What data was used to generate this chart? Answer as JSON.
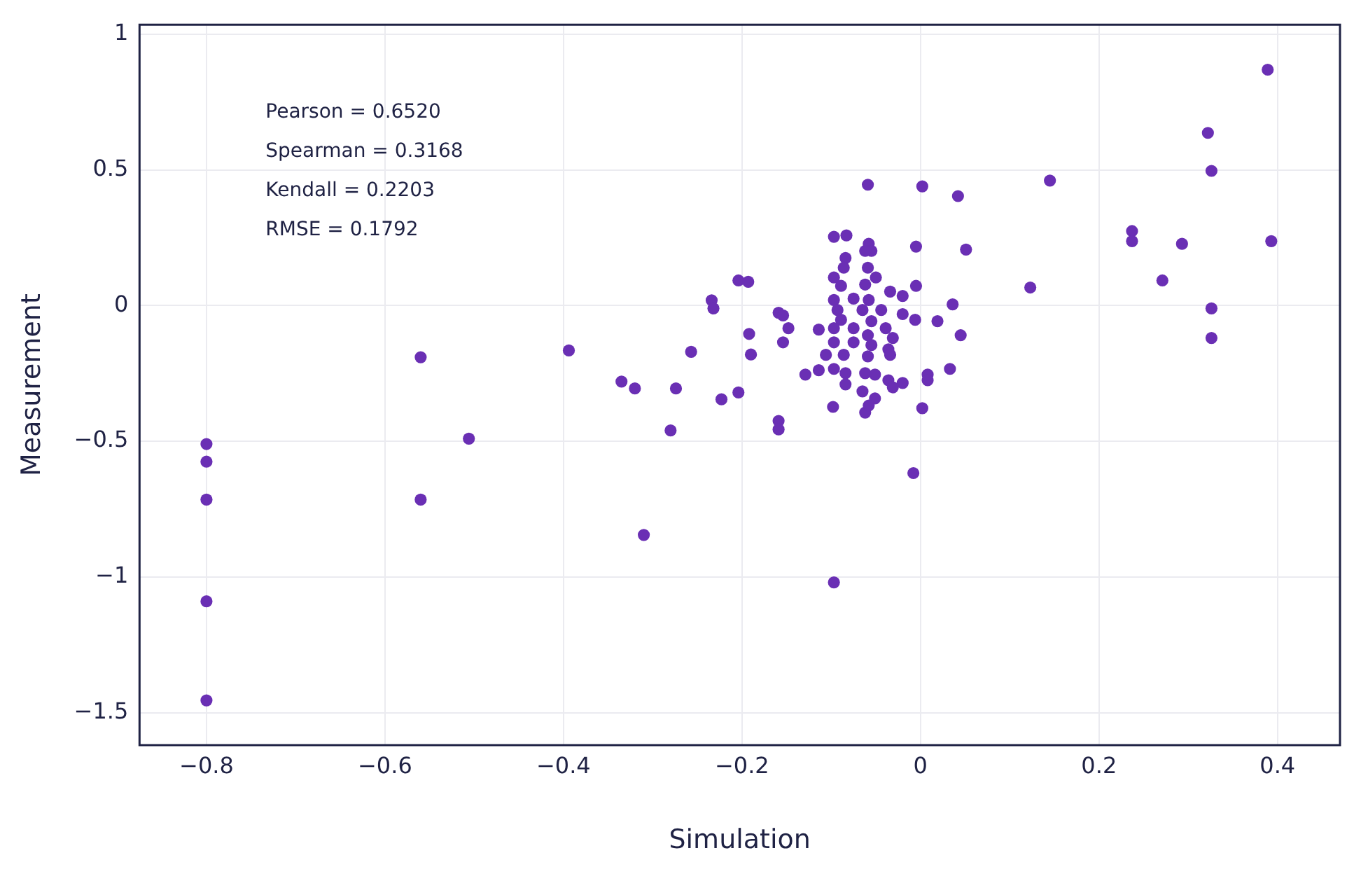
{
  "chart_data": {
    "type": "scatter",
    "xlabel": "Simulation",
    "ylabel": "Measurement",
    "annotations": [
      "Pearson = 0.6520",
      "Spearman = 0.3168",
      "Kendall = 0.2203",
      "RMSE = 0.1792"
    ],
    "xlim": [
      -0.875,
      0.47
    ],
    "ylim": [
      -1.62,
      1.036
    ],
    "xticks": [
      {
        "value": -0.8,
        "label": "−0.8"
      },
      {
        "value": -0.6,
        "label": "−0.6"
      },
      {
        "value": -0.4,
        "label": "−0.4"
      },
      {
        "value": -0.2,
        "label": "−0.2"
      },
      0,
      0.2,
      0.4
    ],
    "yticks": [
      {
        "value": -1.5,
        "label": "−1.5"
      },
      {
        "value": -1,
        "label": "−1"
      },
      {
        "value": -0.5,
        "label": "−0.5"
      },
      0,
      0.5,
      1
    ],
    "grid": true,
    "marker": "circle",
    "series": [
      {
        "color": "#6a2fb4",
        "x": [
          -0.8,
          -0.8,
          -0.8,
          -0.8,
          -0.8,
          -0.56,
          -0.56,
          -0.506,
          -0.394,
          -0.335,
          -0.32,
          -0.31,
          -0.28,
          -0.274,
          -0.257,
          -0.234,
          -0.232,
          -0.223,
          -0.204,
          -0.193,
          -0.204,
          -0.192,
          -0.19,
          -0.159,
          -0.154,
          -0.159,
          -0.159,
          -0.154,
          -0.148,
          -0.129,
          -0.114,
          -0.098,
          -0.097,
          -0.059,
          0.002,
          0.042,
          0.051,
          -0.005,
          -0.008,
          0.002,
          0.036,
          0.045,
          0.033,
          0.008,
          0.008,
          0.019,
          0.123,
          0.145,
          0.237,
          0.237,
          0.271,
          0.293,
          0.322,
          0.326,
          0.326,
          0.326,
          0.389,
          0.393,
          -0.097,
          -0.083,
          -0.058,
          -0.055,
          -0.062,
          -0.084,
          -0.086,
          -0.059,
          -0.097,
          -0.05,
          -0.089,
          -0.062,
          -0.034,
          -0.02,
          -0.097,
          -0.075,
          -0.058,
          -0.093,
          -0.065,
          -0.044,
          -0.02,
          -0.006,
          -0.089,
          -0.055,
          -0.097,
          -0.075,
          -0.039,
          -0.059,
          -0.031,
          -0.097,
          -0.075,
          -0.055,
          -0.036,
          -0.106,
          -0.086,
          -0.059,
          -0.034,
          -0.114,
          -0.097,
          -0.084,
          -0.062,
          -0.051,
          -0.036,
          -0.02,
          -0.084,
          -0.065,
          -0.031,
          -0.051,
          -0.062,
          -0.058,
          -0.005
        ],
        "values": [
          -0.51,
          -0.575,
          -0.715,
          -1.09,
          -1.455,
          -0.19,
          -0.715,
          -0.49,
          -0.165,
          -0.28,
          -0.305,
          -0.845,
          -0.46,
          -0.305,
          -0.17,
          0.02,
          -0.01,
          -0.345,
          0.093,
          0.088,
          -0.32,
          -0.104,
          -0.18,
          -0.026,
          -0.036,
          -0.425,
          -0.456,
          -0.135,
          -0.083,
          -0.254,
          -0.088,
          -0.373,
          -1.02,
          0.446,
          0.44,
          0.404,
          0.207,
          0.218,
          -0.617,
          -0.378,
          0.005,
          -0.109,
          -0.233,
          -0.254,
          -0.275,
          -0.057,
          0.067,
          0.461,
          0.275,
          0.238,
          0.093,
          0.228,
          0.637,
          0.497,
          -0.01,
          -0.119,
          0.87,
          0.238,
          0.254,
          0.259,
          0.228,
          0.202,
          0.202,
          0.176,
          0.14,
          0.14,
          0.104,
          0.104,
          0.073,
          0.078,
          0.052,
          0.036,
          0.021,
          0.026,
          0.021,
          -0.016,
          -0.016,
          -0.016,
          -0.031,
          -0.052,
          -0.052,
          -0.057,
          -0.083,
          -0.083,
          -0.083,
          -0.109,
          -0.119,
          -0.135,
          -0.135,
          -0.145,
          -0.161,
          -0.181,
          -0.181,
          -0.187,
          -0.181,
          -0.238,
          -0.233,
          -0.249,
          -0.249,
          -0.254,
          -0.275,
          -0.285,
          -0.29,
          -0.316,
          -0.301,
          -0.342,
          -0.394,
          -0.368,
          0.073
        ]
      }
    ]
  }
}
